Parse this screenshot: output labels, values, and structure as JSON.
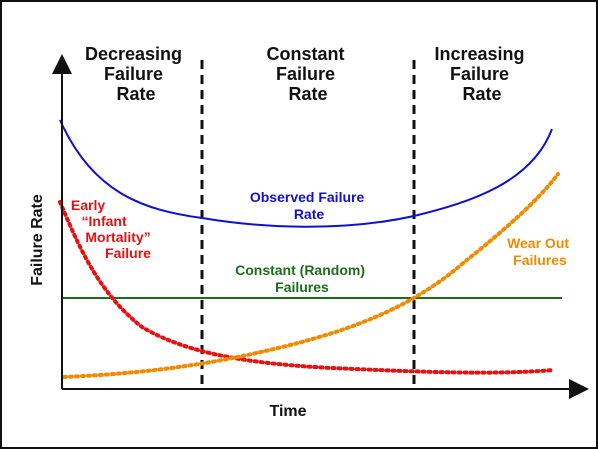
{
  "regions": [
    {
      "lines": [
        "Decreasing",
        "Failure",
        "Rate"
      ]
    },
    {
      "lines": [
        "Constant",
        "Failure",
        "Rate"
      ]
    },
    {
      "lines": [
        "Increasing",
        "Failure",
        "Rate"
      ]
    }
  ],
  "axes": {
    "x_label": "Time",
    "y_label": "Failure Rate"
  },
  "curves": {
    "observed": {
      "lines": [
        "Observed Failure",
        "Rate"
      ],
      "color": "#1010d0"
    },
    "infant": {
      "lines": [
        "Early",
        "“Infant",
        "Mortality”",
        "Failure"
      ],
      "color": "#e81010"
    },
    "constant": {
      "lines": [
        "Constant (Random)",
        "Failures"
      ],
      "color": "#1a6e1a"
    },
    "wearout": {
      "lines": [
        "Wear Out",
        "Failures"
      ],
      "color": "#f08a00"
    }
  }
}
